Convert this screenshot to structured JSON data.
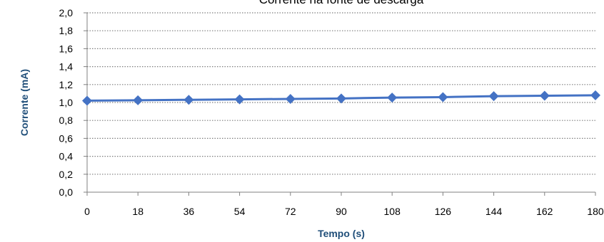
{
  "chart_data": {
    "type": "line",
    "title": "Corrente na fonte de descarga",
    "xlabel": "Tempo (s)",
    "ylabel": "Corrente (mA)",
    "x": [
      0,
      18,
      36,
      54,
      72,
      90,
      108,
      126,
      144,
      162,
      180
    ],
    "x_tick_labels": [
      "0",
      "18",
      "36",
      "54",
      "72",
      "90",
      "108",
      "126",
      "144",
      "162",
      "180"
    ],
    "y_tick_labels": [
      "0,0",
      "0,2",
      "0,4",
      "0,6",
      "0,8",
      "1,0",
      "1,2",
      "1,4",
      "1,6",
      "1,8",
      "2,0"
    ],
    "ylim": [
      0,
      2.0
    ],
    "xlim": [
      0,
      180
    ],
    "grid": "horizontal-dotted",
    "series": [
      {
        "values": [
          1.02,
          1.025,
          1.03,
          1.035,
          1.04,
          1.045,
          1.055,
          1.06,
          1.07,
          1.075,
          1.08
        ],
        "color": "#4472c4"
      }
    ]
  }
}
